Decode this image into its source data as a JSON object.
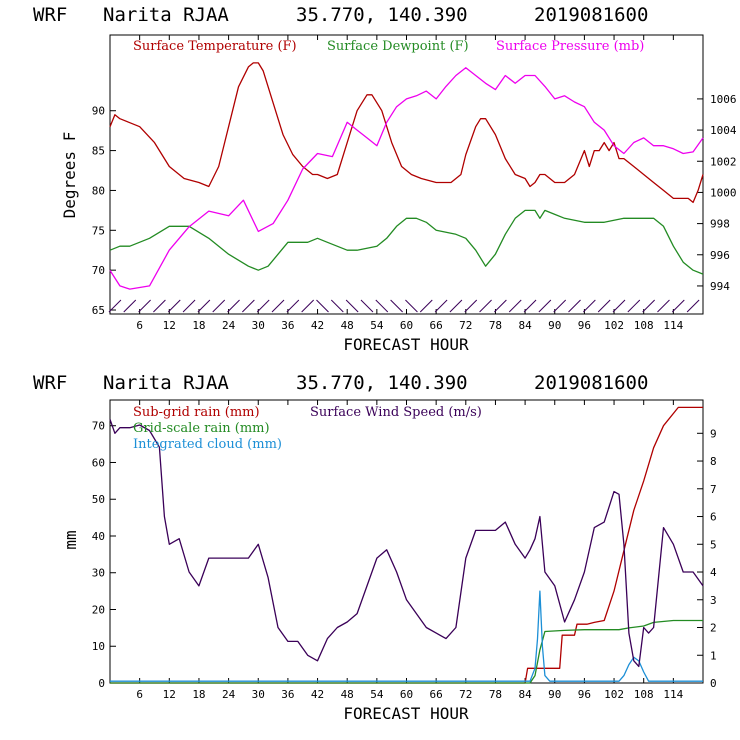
{
  "chart_data": [
    {
      "type": "line",
      "header": {
        "model": "WRF",
        "station": "Narita RJAA",
        "coords": "35.770, 140.390",
        "init": "2019081600"
      },
      "xlabel": "FORECAST HOUR",
      "ylabel": "Degrees F",
      "xticks": [
        6,
        12,
        18,
        24,
        30,
        36,
        42,
        48,
        54,
        60,
        66,
        72,
        78,
        84,
        90,
        96,
        102,
        108,
        114
      ],
      "xlim": [
        0,
        120
      ],
      "ylim": [
        64.5,
        99.5
      ],
      "yticks": [
        65,
        70,
        75,
        80,
        85,
        90
      ],
      "y2ticks": [
        994,
        996,
        998,
        1000,
        1002,
        1004,
        1006
      ],
      "y2lim": [
        992.2,
        1010.1
      ],
      "series": [
        {
          "name": "Surface Temperature (F)",
          "color": "#b00000",
          "axis": "left",
          "x": [
            0,
            1,
            2,
            4,
            6,
            9,
            12,
            15,
            18,
            20,
            22,
            24,
            26,
            28,
            29,
            30,
            31,
            33,
            35,
            37,
            39,
            41,
            42,
            44,
            46,
            48,
            50,
            51,
            52,
            53,
            55,
            57,
            59,
            61,
            63,
            66,
            69,
            71,
            72,
            74,
            75,
            76,
            78,
            80,
            82,
            84,
            85,
            86,
            87,
            88,
            90,
            92,
            94,
            96,
            97,
            98,
            99,
            100,
            101,
            102,
            103,
            104,
            106,
            108,
            110,
            112,
            114,
            116,
            117,
            118,
            119,
            120
          ],
          "y": [
            88,
            89.5,
            89,
            88.5,
            88,
            86,
            83,
            81.5,
            81,
            80.5,
            83,
            88,
            93,
            95.5,
            96,
            96,
            95,
            91,
            87,
            84.5,
            83,
            82,
            82,
            81.5,
            82,
            86,
            90,
            91,
            92,
            92,
            90,
            86,
            83,
            82,
            81.5,
            81,
            81,
            82,
            84.5,
            88,
            89,
            89,
            87,
            84,
            82,
            81.5,
            80.5,
            81,
            82,
            82,
            81,
            81,
            82,
            85,
            83,
            85,
            85,
            86,
            85,
            86,
            84,
            84,
            83,
            82,
            81,
            80,
            79,
            79,
            79,
            78.5,
            80,
            82
          ]
        },
        {
          "name": "Surface Dewpoint (F)",
          "color": "#238b23",
          "axis": "left",
          "x": [
            0,
            2,
            4,
            8,
            12,
            16,
            20,
            24,
            28,
            30,
            32,
            36,
            40,
            42,
            44,
            48,
            50,
            54,
            56,
            58,
            60,
            62,
            64,
            66,
            70,
            72,
            74,
            76,
            78,
            80,
            82,
            84,
            86,
            87,
            88,
            90,
            92,
            96,
            100,
            104,
            106,
            108,
            110,
            112,
            114,
            116,
            118,
            120
          ],
          "y": [
            72.5,
            73,
            73,
            74,
            75.5,
            75.5,
            74,
            72,
            70.5,
            70,
            70.5,
            73.5,
            73.5,
            74,
            73.5,
            72.5,
            72.5,
            73,
            74,
            75.5,
            76.5,
            76.5,
            76,
            75,
            74.5,
            74,
            72.5,
            70.5,
            72,
            74.5,
            76.5,
            77.5,
            77.5,
            76.5,
            77.5,
            77,
            76.5,
            76,
            76,
            76.5,
            76.5,
            76.5,
            76.5,
            75.5,
            73,
            71,
            70,
            69.5
          ]
        },
        {
          "name": "Surface Pressure (mb)",
          "color": "#ee00ee",
          "axis": "right",
          "x": [
            0,
            2,
            4,
            8,
            12,
            16,
            20,
            24,
            27,
            30,
            33,
            36,
            39,
            42,
            45,
            48,
            50,
            52,
            54,
            56,
            58,
            60,
            62,
            64,
            66,
            68,
            70,
            72,
            74,
            76,
            78,
            80,
            82,
            84,
            86,
            88,
            90,
            92,
            94,
            96,
            98,
            100,
            102,
            104,
            106,
            108,
            110,
            112,
            114,
            116,
            118,
            120
          ],
          "y": [
            995,
            994,
            993.8,
            994,
            996.3,
            997.8,
            998.8,
            998.5,
            999.5,
            997.5,
            998,
            999.5,
            1001.5,
            1002.5,
            1002.3,
            1004.5,
            1004,
            1003.5,
            1003,
            1004.5,
            1005.5,
            1006,
            1006.2,
            1006.5,
            1006,
            1006.8,
            1007.5,
            1008,
            1007.5,
            1007,
            1006.6,
            1007.5,
            1007,
            1007.5,
            1007.5,
            1006.8,
            1006,
            1006.2,
            1005.8,
            1005.5,
            1004.5,
            1004,
            1003,
            1002.5,
            1003.2,
            1003.5,
            1003,
            1003,
            1002.8,
            1002.5,
            1002.6,
            1003.5
          ]
        }
      ],
      "wind_barbs": "surface wind barbs along the bottom axis"
    },
    {
      "type": "line",
      "header": {
        "model": "WRF",
        "station": "Narita RJAA",
        "coords": "35.770, 140.390",
        "init": "2019081600"
      },
      "xlabel": "FORECAST HOUR",
      "ylabel": "mm",
      "xticks": [
        6,
        12,
        18,
        24,
        30,
        36,
        42,
        48,
        54,
        60,
        66,
        72,
        78,
        84,
        90,
        96,
        102,
        108,
        114
      ],
      "xlim": [
        0,
        120
      ],
      "ylim": [
        0,
        77
      ],
      "yticks": [
        0,
        10,
        20,
        30,
        40,
        50,
        60,
        70
      ],
      "y2ticks": [
        0,
        1,
        2,
        3,
        4,
        5,
        6,
        7,
        8,
        9
      ],
      "y2lim": [
        0,
        10.2
      ],
      "series": [
        {
          "name": "Sub-grid rain (mm)",
          "color": "#b00000",
          "axis": "left",
          "x": [
            0,
            84,
            84.5,
            91,
            91.5,
            94,
            94.5,
            96,
            96.5,
            98,
            100,
            102,
            104,
            106,
            108,
            110,
            112,
            115,
            117,
            120
          ],
          "y": [
            0,
            0,
            4,
            4,
            13,
            13,
            16,
            16,
            16,
            16.5,
            17,
            25,
            36,
            47,
            55,
            64,
            70,
            75,
            75,
            75
          ]
        },
        {
          "name": "Grid-scale rain (mm)",
          "color": "#238b23",
          "axis": "left",
          "x": [
            0,
            85,
            86,
            87,
            88,
            92,
            96,
            100,
            103,
            105,
            108,
            110,
            114,
            116,
            120
          ],
          "y": [
            0,
            0,
            2,
            9,
            14,
            14.3,
            14.5,
            14.5,
            14.5,
            15,
            15.5,
            16.5,
            17,
            17,
            17
          ]
        },
        {
          "name": "Integrated cloud (mm)",
          "color": "#1c8fd6",
          "axis": "left",
          "x": [
            0,
            85,
            86,
            86.5,
            87,
            87.5,
            88,
            89,
            103,
            104,
            105,
            106,
            107,
            108,
            109,
            120
          ],
          "y": [
            0.5,
            0.5,
            4,
            12,
            25,
            10,
            2,
            0.5,
            0.5,
            2,
            5,
            7,
            6,
            3,
            0.5,
            0.5
          ]
        },
        {
          "name": "Surface Wind Speed (m/s)",
          "color": "#3a0058",
          "axis": "right",
          "x": [
            0,
            1,
            2,
            4,
            6,
            8,
            10,
            11,
            12,
            14,
            16,
            18,
            20,
            22,
            24,
            28,
            30,
            32,
            34,
            36,
            38,
            40,
            42,
            44,
            46,
            48,
            50,
            52,
            54,
            56,
            58,
            60,
            62,
            64,
            66,
            68,
            70,
            72,
            74,
            76,
            78,
            80,
            82,
            84,
            85,
            86,
            87,
            88,
            90,
            92,
            94,
            96,
            98,
            100,
            102,
            103,
            104,
            105,
            106,
            107,
            108,
            109,
            110,
            112,
            114,
            116,
            118,
            120
          ],
          "y": [
            9.5,
            9,
            9.2,
            9.2,
            9.3,
            9.1,
            8.5,
            6,
            5,
            5.2,
            4,
            3.5,
            4.5,
            4.5,
            4.5,
            4.5,
            5,
            3.8,
            2,
            1.5,
            1.5,
            1,
            0.8,
            1.6,
            2,
            2.2,
            2.5,
            3.5,
            4.5,
            4.8,
            4,
            3,
            2.5,
            2,
            1.8,
            1.6,
            2,
            4.5,
            5.5,
            5.5,
            5.5,
            5.8,
            5,
            4.5,
            4.8,
            5.2,
            6,
            4,
            3.5,
            2.2,
            3,
            4,
            5.6,
            5.8,
            6.9,
            6.8,
            5,
            1.8,
            0.8,
            0.6,
            2,
            1.8,
            2,
            5.6,
            5,
            4,
            4,
            3.5
          ]
        }
      ]
    }
  ]
}
